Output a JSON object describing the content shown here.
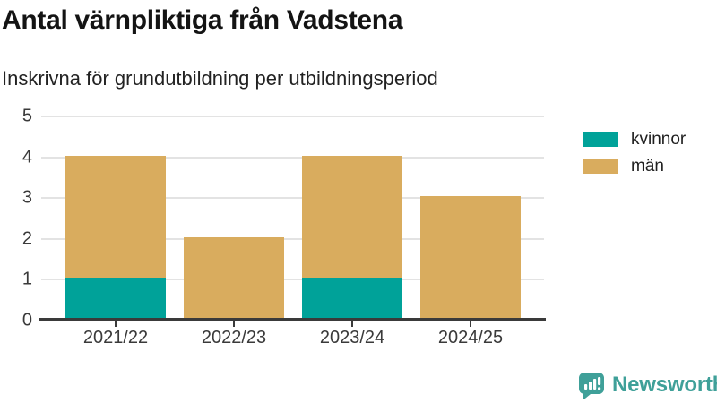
{
  "title": "Antal värnpliktiga från Vadstena",
  "subtitle": "Inskrivna för grundutbildning per utbildningsperiod",
  "chart_data": {
    "type": "bar",
    "stacked": true,
    "title": "Antal värnpliktiga från Vadstena",
    "subtitle": "Inskrivna för grundutbildning per utbildningsperiod",
    "categories": [
      "2021/22",
      "2022/23",
      "2023/24",
      "2024/25"
    ],
    "series": [
      {
        "name": "kvinnor",
        "color": "#00A299",
        "values": [
          1,
          0,
          1,
          0
        ]
      },
      {
        "name": "män",
        "color": "#D9AC5E",
        "values": [
          3,
          2,
          3,
          3
        ]
      }
    ],
    "totals": [
      4,
      2,
      4,
      3
    ],
    "xlabel": "",
    "ylabel": "",
    "ylim": [
      0,
      5
    ],
    "yticks": [
      0,
      1,
      2,
      3,
      4,
      5
    ],
    "grid": true,
    "legend_position": "right"
  },
  "colors": {
    "kvinnor": "#00A299",
    "man": "#D9AC5E",
    "grid": "#e3e3e3",
    "axis": "#3a3a3a",
    "brand": "#3FA099"
  },
  "branding": {
    "logo_text": "Newsworthy",
    "logo_icon": "bar-chart-speech-bubble-icon"
  }
}
